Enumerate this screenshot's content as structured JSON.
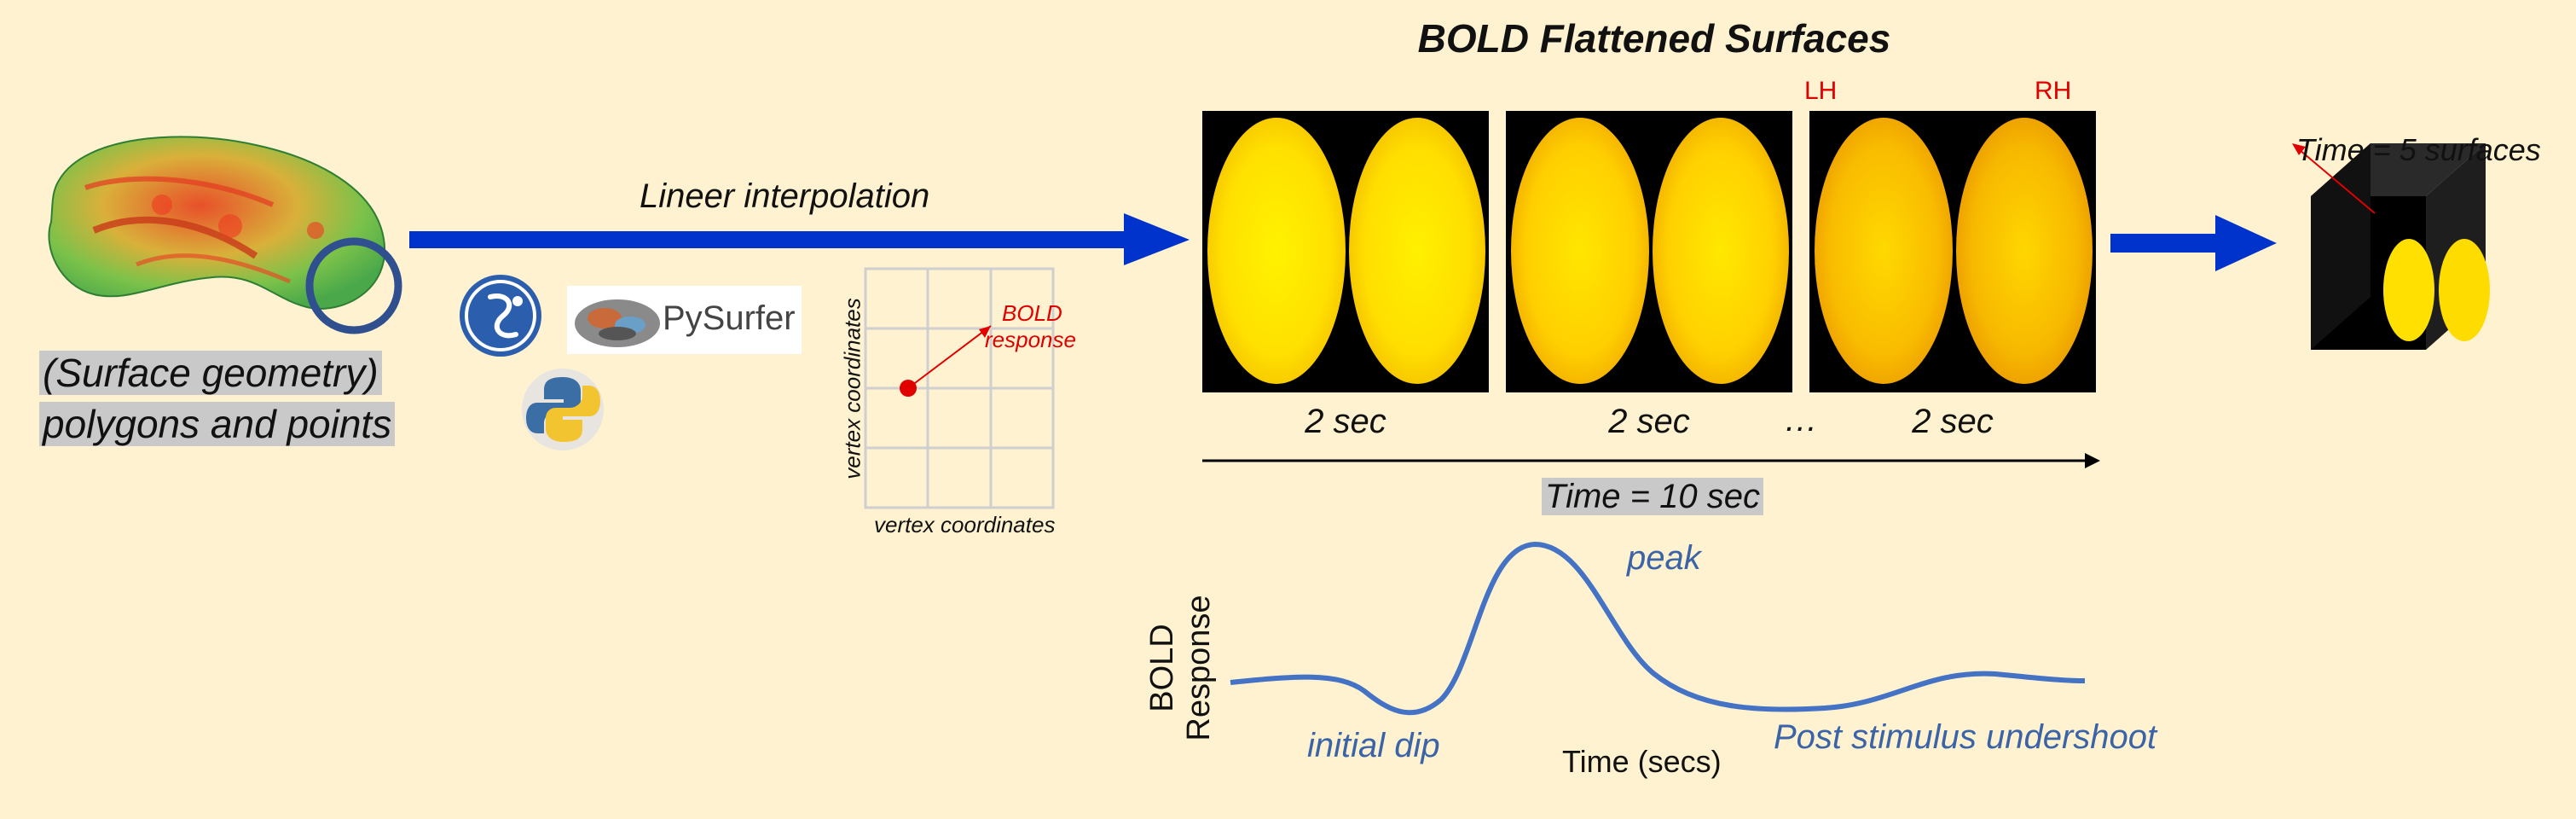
{
  "title": "BOLD Flattened Surfaces",
  "surface_label": {
    "line1": "(Surface geometry)",
    "line2": "polygons and points"
  },
  "interpolation_label": "Lineer interpolation",
  "tools": {
    "pysurfer": "PySurfer"
  },
  "vertex_plot": {
    "xlabel": "vertex coordinates",
    "ylabel": "vertex coordinates",
    "annotation_line1": "BOLD",
    "annotation_line2": "response"
  },
  "hemispheres": {
    "left": "LH",
    "right": "RH"
  },
  "panel_times": [
    "2 sec",
    "2 sec",
    "2 sec"
  ],
  "ellipsis": "…",
  "time_total": "Time = 10 sec",
  "cube_label": "Time = 5 surfaces",
  "hrf": {
    "ylabel_line1": "BOLD",
    "ylabel_line2": "Response",
    "xlabel": "Time (secs)",
    "peak": "peak",
    "initial_dip": "initial dip",
    "undershoot": "Post stimulus undershoot"
  },
  "colors": {
    "arrow_blue": "#0033cc",
    "annotation_red": "#e00000",
    "curve_blue": "#4472c4",
    "background": "#fff2d0"
  }
}
